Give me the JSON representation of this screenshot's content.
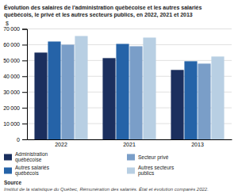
{
  "chart_data": {
    "type": "bar",
    "title": "Évolution des salaires de l’administration québécoise et les autres salariés\nquébécois, le privé et les autres secteurs publics, en 2022, 2021 et 2013",
    "ylabel": "$",
    "categories": [
      "2022",
      "2021",
      "2013"
    ],
    "series": [
      {
        "name": "Administration\nquébécoise",
        "color": "#1b2f5e",
        "values": [
          55000,
          51500,
          44000
        ]
      },
      {
        "name": "Autres salariés\nquébécois",
        "color": "#2563a8",
        "values": [
          62000,
          60500,
          49500
        ]
      },
      {
        "name": "Secteur privé",
        "color": "#7a9ec8",
        "values": [
          60000,
          59000,
          48000
        ]
      },
      {
        "name": "Autres secteurs\npublics",
        "color": "#b8cfe3",
        "values": [
          65500,
          64500,
          52500
        ]
      }
    ],
    "ylim": [
      0,
      70000
    ],
    "yticks": [
      0,
      {
        "value": 10000,
        "label": "10 000"
      },
      {
        "value": 20000,
        "label": "20 000"
      },
      {
        "value": 30000,
        "label": "30 000"
      },
      {
        "value": 40000,
        "label": "40 000"
      },
      {
        "value": 50000,
        "label": "50 000"
      },
      {
        "value": 60000,
        "label": "60 000"
      },
      {
        "value": 70000,
        "label": "70 000"
      }
    ],
    "grid": true,
    "legend": "bottom",
    "annotations": [
      "Source",
      "Institut de la statistique du Québec, Rémunération des salariés. État et évolution comparés 2022."
    ]
  }
}
